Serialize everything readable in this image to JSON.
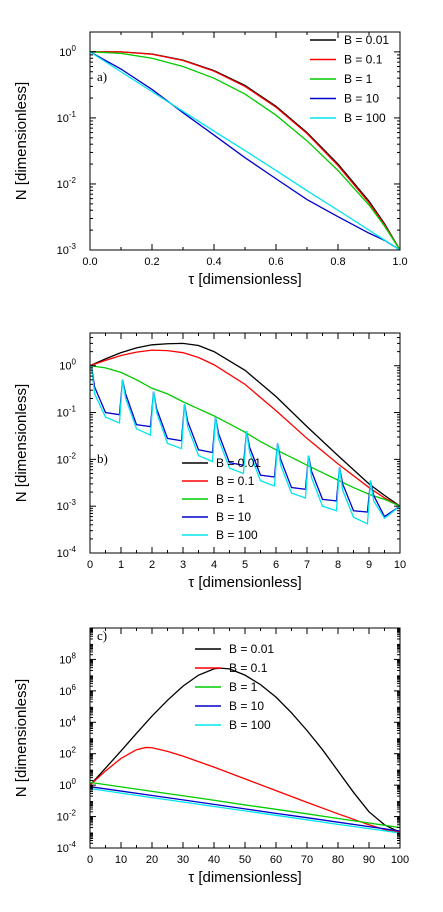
{
  "chart_data": [
    {
      "type": "line",
      "panel_label": "a)",
      "xlabel": "τ [dimensionless]",
      "ylabel": "N [dimensionless]",
      "xlim": [
        0,
        1
      ],
      "ylim": [
        0.001,
        2
      ],
      "yscale": "log",
      "xticks": [
        0.0,
        0.2,
        0.4,
        0.6,
        0.8,
        1.0
      ],
      "xtick_labels": [
        "0.0",
        "0.2",
        "0.4",
        "0.6",
        "0.8",
        "1.0"
      ],
      "yticks": [
        0.001,
        0.01,
        0.1,
        1
      ],
      "ytick_labels": [
        [
          "10",
          "-3"
        ],
        [
          "10",
          "-2"
        ],
        [
          "10",
          "-1"
        ],
        [
          "10",
          "0"
        ]
      ],
      "legend_placement": "top-right",
      "series": [
        {
          "name": "B = 0.01",
          "color": "#000000",
          "x": [
            0,
            0.1,
            0.2,
            0.3,
            0.4,
            0.5,
            0.6,
            0.7,
            0.8,
            0.9,
            0.95,
            1.0
          ],
          "y": [
            1.0,
            1.0,
            0.93,
            0.75,
            0.52,
            0.31,
            0.15,
            0.06,
            0.02,
            0.0055,
            0.0025,
            0.001
          ]
        },
        {
          "name": "B = 0.1",
          "color": "#ff0000",
          "x": [
            0,
            0.1,
            0.2,
            0.3,
            0.4,
            0.5,
            0.6,
            0.7,
            0.8,
            0.9,
            0.95,
            1.0
          ],
          "y": [
            1.0,
            1.0,
            0.92,
            0.74,
            0.51,
            0.3,
            0.145,
            0.058,
            0.019,
            0.0052,
            0.0024,
            0.001
          ]
        },
        {
          "name": "B = 1",
          "color": "#00cc00",
          "x": [
            0,
            0.1,
            0.2,
            0.3,
            0.4,
            0.5,
            0.6,
            0.7,
            0.8,
            0.9,
            0.95,
            1.0
          ],
          "y": [
            1.0,
            0.95,
            0.8,
            0.6,
            0.4,
            0.23,
            0.11,
            0.045,
            0.016,
            0.0048,
            0.0023,
            0.001
          ]
        },
        {
          "name": "B = 10",
          "color": "#0000cc",
          "x": [
            0,
            0.1,
            0.2,
            0.3,
            0.4,
            0.5,
            0.6,
            0.7,
            0.8,
            0.9,
            0.95,
            1.0
          ],
          "y": [
            1.0,
            0.55,
            0.27,
            0.12,
            0.055,
            0.025,
            0.012,
            0.0058,
            0.0032,
            0.0018,
            0.0014,
            0.001
          ]
        },
        {
          "name": "B = 100",
          "color": "#00e5ee",
          "x": [
            0,
            0.1,
            0.2,
            0.3,
            0.4,
            0.5,
            0.6,
            0.7,
            0.8,
            0.9,
            1.0
          ],
          "y": [
            1.0,
            0.5,
            0.25,
            0.126,
            0.063,
            0.032,
            0.016,
            0.0079,
            0.004,
            0.002,
            0.001
          ]
        }
      ]
    },
    {
      "type": "line",
      "panel_label": "b)",
      "xlabel": "τ [dimensionless]",
      "ylabel": "N [dimensionless]",
      "xlim": [
        0,
        10
      ],
      "ylim": [
        0.0001,
        5
      ],
      "yscale": "log",
      "xticks": [
        0,
        1,
        2,
        3,
        4,
        5,
        6,
        7,
        8,
        9,
        10
      ],
      "xtick_labels": [
        "0",
        "1",
        "2",
        "3",
        "4",
        "5",
        "6",
        "7",
        "8",
        "9",
        "10"
      ],
      "yticks": [
        0.0001,
        0.001,
        0.01,
        0.1,
        1
      ],
      "ytick_labels": [
        [
          "10",
          "-4"
        ],
        [
          "10",
          "-3"
        ],
        [
          "10",
          "-2"
        ],
        [
          "10",
          "-1"
        ],
        [
          "10",
          "0"
        ]
      ],
      "legend_placement": "bottom-left",
      "series": [
        {
          "name": "B = 0.01",
          "color": "#000000",
          "x": [
            0,
            0.5,
            1,
            1.5,
            2,
            2.5,
            3,
            3.5,
            4,
            5,
            6,
            7,
            8,
            9,
            9.5,
            10
          ],
          "y": [
            1.0,
            1.4,
            1.9,
            2.4,
            2.8,
            2.95,
            3.0,
            2.7,
            2.0,
            0.8,
            0.22,
            0.05,
            0.012,
            0.003,
            0.0017,
            0.001
          ]
        },
        {
          "name": "B = 0.1",
          "color": "#ff0000",
          "x": [
            0,
            0.5,
            1,
            1.5,
            2,
            2.5,
            3,
            3.5,
            4,
            5,
            6,
            7,
            8,
            9,
            9.5,
            10
          ],
          "y": [
            1.0,
            1.3,
            1.65,
            1.95,
            2.15,
            2.1,
            1.9,
            1.5,
            1.05,
            0.4,
            0.11,
            0.028,
            0.008,
            0.0025,
            0.0015,
            0.001
          ]
        },
        {
          "name": "B = 1",
          "color": "#00cc00",
          "x": [
            0,
            0.5,
            1,
            1.5,
            2,
            2.5,
            3,
            3.5,
            4,
            4.5,
            5,
            5.5,
            6,
            6.5,
            7,
            7.5,
            8,
            8.5,
            9,
            9.5,
            10
          ],
          "y": [
            1.0,
            0.9,
            0.72,
            0.5,
            0.33,
            0.25,
            0.17,
            0.12,
            0.085,
            0.057,
            0.038,
            0.024,
            0.016,
            0.011,
            0.0075,
            0.0052,
            0.0036,
            0.0025,
            0.0018,
            0.0014,
            0.001
          ]
        },
        {
          "name": "B = 10",
          "color": "#0000cc",
          "x": [
            0,
            0.05,
            0.15,
            0.5,
            0.95,
            1.05,
            1.15,
            1.5,
            1.95,
            2.05,
            2.15,
            2.5,
            2.95,
            3.05,
            3.15,
            3.5,
            3.95,
            4.05,
            4.15,
            4.5,
            4.95,
            5.05,
            5.15,
            5.5,
            5.95,
            6.05,
            6.15,
            6.5,
            6.95,
            7.05,
            7.15,
            7.5,
            7.95,
            8.05,
            8.15,
            8.5,
            8.95,
            9.05,
            9.15,
            9.5,
            10
          ],
          "y": [
            1.0,
            0.95,
            0.35,
            0.1,
            0.09,
            0.5,
            0.25,
            0.055,
            0.05,
            0.28,
            0.12,
            0.028,
            0.025,
            0.15,
            0.065,
            0.016,
            0.014,
            0.08,
            0.035,
            0.0085,
            0.0075,
            0.04,
            0.018,
            0.0046,
            0.0042,
            0.022,
            0.01,
            0.0025,
            0.0023,
            0.012,
            0.0055,
            0.0014,
            0.0013,
            0.0068,
            0.003,
            0.0008,
            0.00075,
            0.0035,
            0.0017,
            0.0006,
            0.001
          ]
        },
        {
          "name": "B = 100",
          "color": "#00e5ee",
          "x": [
            0,
            0.05,
            0.15,
            0.5,
            0.95,
            1.05,
            1.15,
            1.5,
            1.95,
            2.05,
            2.15,
            2.5,
            2.95,
            3.05,
            3.15,
            3.5,
            3.95,
            4.05,
            4.15,
            4.5,
            4.95,
            5.05,
            5.15,
            5.5,
            5.95,
            6.05,
            6.15,
            6.5,
            6.95,
            7.05,
            7.15,
            7.5,
            7.95,
            8.05,
            8.15,
            8.5,
            8.95,
            9.05,
            9.15,
            9.5,
            10
          ],
          "y": [
            1.0,
            0.95,
            0.25,
            0.08,
            0.06,
            0.5,
            0.2,
            0.045,
            0.033,
            0.28,
            0.1,
            0.022,
            0.017,
            0.15,
            0.05,
            0.012,
            0.009,
            0.08,
            0.027,
            0.0065,
            0.005,
            0.04,
            0.014,
            0.0035,
            0.0027,
            0.022,
            0.0075,
            0.0019,
            0.0015,
            0.012,
            0.004,
            0.001,
            0.0008,
            0.0068,
            0.0022,
            0.00058,
            0.00042,
            0.0035,
            0.0013,
            0.00055,
            0.001
          ]
        }
      ]
    },
    {
      "type": "line",
      "panel_label": "c)",
      "xlabel": "τ [dimensionless]",
      "ylabel": "N [dimensionless]",
      "xlim": [
        0,
        100
      ],
      "ylim": [
        0.0001,
        10000000000
      ],
      "yscale": "log",
      "xticks": [
        0,
        10,
        20,
        30,
        40,
        50,
        60,
        70,
        80,
        90,
        100
      ],
      "xtick_labels": [
        "0",
        "10",
        "20",
        "30",
        "40",
        "50",
        "60",
        "70",
        "80",
        "90",
        "100"
      ],
      "yticks": [
        0.0001,
        0.01,
        1,
        100,
        10000,
        1000000,
        100000000
      ],
      "ytick_labels": [
        [
          "10",
          "-4"
        ],
        [
          "10",
          "-2"
        ],
        [
          "10",
          "0"
        ],
        [
          "10",
          "2"
        ],
        [
          "10",
          "4"
        ],
        [
          "10",
          "6"
        ],
        [
          "10",
          "8"
        ]
      ],
      "legend_placement": "top-center",
      "series": [
        {
          "name": "B = 0.01",
          "color": "#000000",
          "x": [
            0,
            5,
            10,
            15,
            20,
            25,
            30,
            35,
            40,
            42,
            45,
            50,
            55,
            60,
            65,
            70,
            75,
            80,
            85,
            90,
            95,
            100
          ],
          "y": [
            1.0,
            12,
            150.0,
            2000.0,
            25000.0,
            250000.0,
            2000000.0,
            10000000.0,
            25000000.0,
            28000000.0,
            25000000.0,
            10000000.0,
            2500000.0,
            400000.0,
            40000.0,
            3000.0,
            180.0,
            8,
            0.35,
            0.02,
            0.003,
            0.001
          ]
        },
        {
          "name": "B = 0.1",
          "color": "#ff0000",
          "x": [
            0,
            5,
            10,
            15,
            18,
            20,
            25,
            30,
            40,
            50,
            60,
            70,
            80,
            90,
            95,
            100
          ],
          "y": [
            1.0,
            8,
            50,
            180,
            250,
            240,
            140,
            70,
            14,
            2.5,
            0.45,
            0.08,
            0.015,
            0.003,
            0.0015,
            0.001
          ]
        },
        {
          "name": "B = 1",
          "color": "#00cc00",
          "x": [
            0,
            10,
            20,
            30,
            40,
            50,
            60,
            70,
            80,
            90,
            100
          ],
          "y": [
            1.5,
            0.78,
            0.4,
            0.21,
            0.11,
            0.055,
            0.029,
            0.015,
            0.0075,
            0.0039,
            0.002
          ]
        },
        {
          "name": "B = 10",
          "color": "#0000cc",
          "x": [
            0,
            10,
            20,
            30,
            40,
            50,
            60,
            70,
            80,
            90,
            100
          ],
          "y": [
            0.8,
            0.42,
            0.22,
            0.115,
            0.06,
            0.031,
            0.016,
            0.0085,
            0.0044,
            0.0023,
            0.0012
          ]
        },
        {
          "name": "B = 100",
          "color": "#00e5ee",
          "x": [
            0,
            10,
            20,
            30,
            40,
            50,
            60,
            70,
            80,
            90,
            100
          ],
          "y": [
            0.6,
            0.31,
            0.16,
            0.085,
            0.044,
            0.023,
            0.012,
            0.0062,
            0.0032,
            0.0017,
            0.0009
          ]
        }
      ]
    }
  ]
}
